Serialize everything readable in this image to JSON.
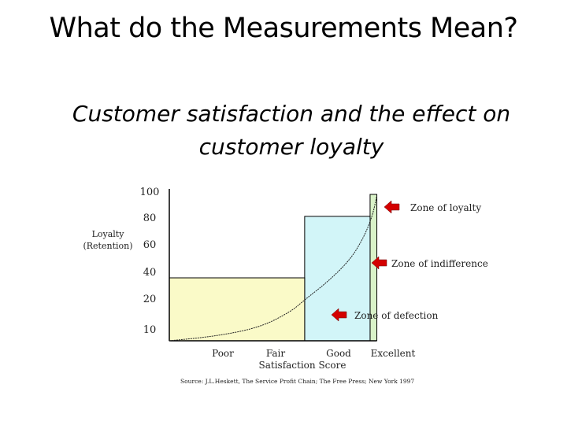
{
  "slide": {
    "title": "What do the Measurements Mean?",
    "subtitle_line1": "Customer satisfaction and the effect on",
    "subtitle_line2": "customer loyalty"
  },
  "chart_data": {
    "type": "line",
    "ylabel_lines": [
      "Loyalty",
      "(Retention)"
    ],
    "xlabel": "Satisfaction Score",
    "y_ticks": [
      "100",
      "80",
      "60",
      "40",
      "20",
      "10"
    ],
    "x_ticks": [
      "Poor",
      "Fair",
      "Good",
      "Excellent"
    ],
    "curve": [
      [
        0,
        0
      ],
      [
        1,
        3
      ],
      [
        2,
        9
      ],
      [
        2.7,
        20
      ],
      [
        3,
        28
      ],
      [
        3.5,
        40
      ],
      [
        4,
        55
      ],
      [
        4.3,
        70
      ],
      [
        4.5,
        85
      ],
      [
        4.6,
        99
      ]
    ],
    "zones": [
      {
        "label": "Zone of loyalty",
        "color": "#d9f2c8",
        "x": [
          4.45,
          4.6
        ],
        "y": [
          0,
          100
        ]
      },
      {
        "label": "Zone of indifference",
        "color": "#d2f5f8",
        "x": [
          3,
          4.45
        ],
        "y": [
          0,
          85
        ]
      },
      {
        "label": "Zone of defection",
        "color": "#fafac8",
        "x": [
          0,
          3
        ],
        "y": [
          0,
          43
        ]
      }
    ],
    "source": "Source: J.L.Heskett, The Service Profit Chain; The Free Press; New York 1997",
    "arrow_color": "#d40000"
  }
}
